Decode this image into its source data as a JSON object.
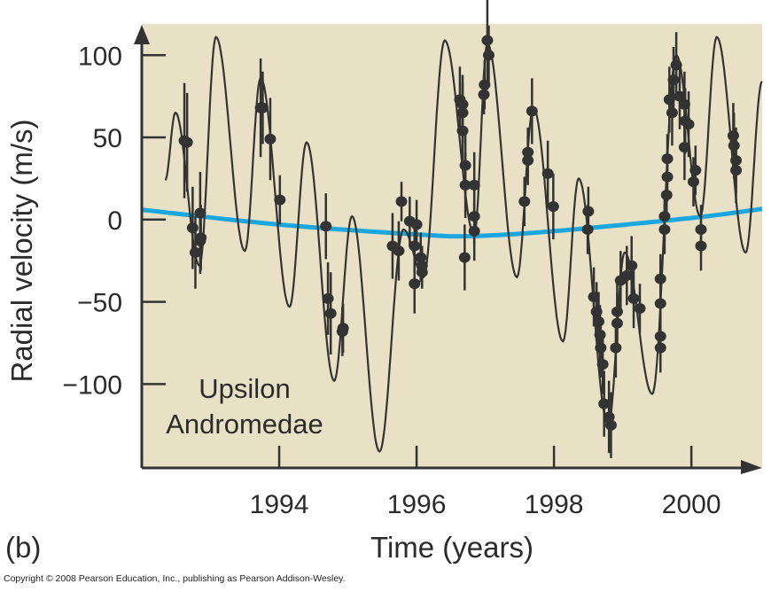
{
  "chart_data": {
    "type": "scatter",
    "panel_label": "(b)",
    "title": "",
    "xlabel": "Time (years)",
    "ylabel": "Radial velocity (m/s)",
    "annotation": [
      "Upsilon",
      "Andromedae"
    ],
    "xlim": [
      1992.0,
      2001.03
    ],
    "ylim": [
      -151,
      119
    ],
    "xticks": [
      1994,
      1996,
      1998,
      2000
    ],
    "yticks": [
      100,
      50,
      0,
      -50,
      -100
    ],
    "ytick_labels": [
      "100",
      "50",
      "0",
      "−50",
      "−100"
    ],
    "xtick_labels": [
      "1994",
      "1996",
      "1998",
      "2000"
    ],
    "grid": false,
    "colors": {
      "background": "#e8e1c5",
      "model": "#333333",
      "points": "#333333",
      "trend": "#1aa7e0",
      "axis": "#333333"
    },
    "model_curve_extrema": [
      [
        1992.34,
        24
      ],
      [
        1992.49,
        65
      ],
      [
        1992.84,
        -28
      ],
      [
        1993.08,
        111
      ],
      [
        1993.5,
        -19
      ],
      [
        1993.73,
        86
      ],
      [
        1994.15,
        -53
      ],
      [
        1994.4,
        47
      ],
      [
        1994.8,
        -98
      ],
      [
        1995.06,
        2
      ],
      [
        1995.46,
        -141
      ],
      [
        1995.81,
        -6
      ],
      [
        1996.1,
        -35
      ],
      [
        1996.41,
        109
      ],
      [
        1996.84,
        -9
      ],
      [
        1997.03,
        107
      ],
      [
        1997.46,
        -35
      ],
      [
        1997.7,
        68
      ],
      [
        1998.13,
        -74
      ],
      [
        1998.36,
        25
      ],
      [
        1998.79,
        -125
      ],
      [
        1999.03,
        -20
      ],
      [
        1999.43,
        -106
      ],
      [
        1999.78,
        100
      ],
      [
        2000.13,
        2
      ],
      [
        2000.37,
        111
      ],
      [
        2000.79,
        -20
      ],
      [
        2001.03,
        84
      ]
    ],
    "trend_curve": [
      [
        1992.0,
        6
      ],
      [
        1994.0,
        -3
      ],
      [
        1996.0,
        -9
      ],
      [
        1996.8,
        -10
      ],
      [
        1998.0,
        -7
      ],
      [
        2000.0,
        1
      ],
      [
        2001.03,
        6.5
      ]
    ],
    "points": [
      [
        1992.62,
        48,
        35
      ],
      [
        1992.66,
        47,
        30
      ],
      [
        1992.74,
        -5,
        25
      ],
      [
        1992.78,
        -20,
        22
      ],
      [
        1992.85,
        4,
        25
      ],
      [
        1992.86,
        -11,
        20
      ],
      [
        1992.85,
        -13,
        20
      ],
      [
        1993.73,
        68,
        30
      ],
      [
        1993.76,
        68,
        22
      ],
      [
        1993.87,
        49,
        25
      ],
      [
        1994.01,
        12,
        15
      ],
      [
        1994.68,
        -4,
        20
      ],
      [
        1994.71,
        -48,
        22
      ],
      [
        1994.75,
        -57,
        25
      ],
      [
        1994.92,
        -68,
        15
      ],
      [
        1994.93,
        -66,
        15
      ],
      [
        1995.65,
        -16,
        20
      ],
      [
        1995.74,
        -19,
        18
      ],
      [
        1995.78,
        11,
        12
      ],
      [
        1995.9,
        -1,
        15
      ],
      [
        1996.0,
        -3,
        15
      ],
      [
        1995.97,
        -16,
        15
      ],
      [
        1996.06,
        -23,
        15
      ],
      [
        1996.08,
        -28,
        12
      ],
      [
        1996.08,
        -32,
        10
      ],
      [
        1995.97,
        -39,
        18
      ],
      [
        1996.63,
        73,
        20
      ],
      [
        1996.67,
        70,
        18
      ],
      [
        1996.67,
        65,
        18
      ],
      [
        1996.67,
        54,
        18
      ],
      [
        1996.71,
        33,
        20
      ],
      [
        1996.71,
        21,
        20
      ],
      [
        1996.84,
        21,
        20
      ],
      [
        1996.84,
        2,
        18
      ],
      [
        1996.84,
        -7,
        18
      ],
      [
        1996.7,
        -23,
        20
      ],
      [
        1997.03,
        109,
        30
      ],
      [
        1997.05,
        100,
        18
      ],
      [
        1996.99,
        82,
        15
      ],
      [
        1996.98,
        76,
        12
      ],
      [
        1997.68,
        66,
        20
      ],
      [
        1997.62,
        41,
        15
      ],
      [
        1997.62,
        36,
        15
      ],
      [
        1997.57,
        11,
        15
      ],
      [
        1997.91,
        28,
        20
      ],
      [
        1997.99,
        8,
        20
      ],
      [
        1998.5,
        5,
        15
      ],
      [
        1998.49,
        -6,
        15
      ],
      [
        1998.58,
        -47,
        18
      ],
      [
        1998.62,
        -56,
        18
      ],
      [
        1998.65,
        -62,
        18
      ],
      [
        1998.67,
        -70,
        18
      ],
      [
        1998.68,
        -78,
        18
      ],
      [
        1998.71,
        -88,
        18
      ],
      [
        1998.73,
        -112,
        20
      ],
      [
        1998.8,
        -120,
        22
      ],
      [
        1998.83,
        -125,
        20
      ],
      [
        1998.92,
        -56,
        18
      ],
      [
        1998.92,
        -63,
        18
      ],
      [
        1998.9,
        -78,
        18
      ],
      [
        1998.97,
        -37,
        18
      ],
      [
        1999.06,
        -34,
        18
      ],
      [
        1999.13,
        -28,
        18
      ],
      [
        1999.16,
        -48,
        18
      ],
      [
        1999.25,
        -54,
        15
      ],
      [
        1999.55,
        -36,
        15
      ],
      [
        1999.55,
        -51,
        15
      ],
      [
        1999.55,
        -71,
        15
      ],
      [
        1999.55,
        -78,
        15
      ],
      [
        1999.61,
        -6,
        15
      ],
      [
        1999.61,
        2,
        15
      ],
      [
        1999.64,
        15,
        15
      ],
      [
        1999.65,
        26,
        15
      ],
      [
        1999.65,
        37,
        15
      ],
      [
        1999.68,
        73,
        20
      ],
      [
        1999.72,
        65,
        20
      ],
      [
        1999.78,
        94,
        20
      ],
      [
        1999.74,
        85,
        20
      ],
      [
        1999.83,
        75,
        20
      ],
      [
        1999.9,
        70,
        20
      ],
      [
        1999.91,
        60,
        20
      ],
      [
        1999.96,
        58,
        20
      ],
      [
        1999.9,
        44,
        20
      ],
      [
        2000.06,
        30,
        15
      ],
      [
        2000.03,
        23,
        15
      ],
      [
        2000.14,
        -6,
        15
      ],
      [
        2000.14,
        -16,
        15
      ],
      [
        2000.61,
        51,
        20
      ],
      [
        2000.62,
        45,
        20
      ],
      [
        2000.65,
        36,
        20
      ],
      [
        2000.65,
        30,
        20
      ]
    ]
  },
  "footer": {
    "copyright": "Copyright © 2008 Pearson Education, Inc., publishing as Pearson Addison-Wesley."
  }
}
